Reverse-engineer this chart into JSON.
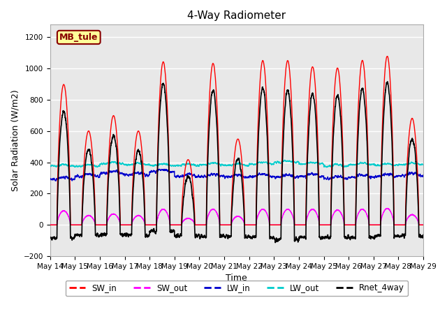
{
  "title": "4-Way Radiometer",
  "xlabel": "Time",
  "ylabel": "Solar Radiation (W/m2)",
  "ylim": [
    -200,
    1280
  ],
  "yticks": [
    -200,
    0,
    200,
    400,
    600,
    800,
    1000,
    1200
  ],
  "station_label": "MB_tule",
  "start_day": 14,
  "end_day": 29,
  "n_days": 15,
  "points_per_day": 288,
  "sw_in_peaks": [
    900,
    600,
    700,
    600,
    1040,
    420,
    1030,
    550,
    1050,
    1050,
    1010,
    1000,
    1050,
    1080,
    680
  ],
  "sw_out_peaks": [
    90,
    60,
    70,
    60,
    100,
    42,
    100,
    55,
    100,
    100,
    100,
    95,
    100,
    105,
    65
  ],
  "lw_in_base": [
    290,
    310,
    330,
    320,
    340,
    310,
    310,
    305,
    310,
    305,
    310,
    295,
    305,
    310,
    315
  ],
  "lw_out_base": [
    375,
    375,
    390,
    385,
    380,
    380,
    385,
    380,
    390,
    400,
    390,
    375,
    385,
    380,
    385
  ],
  "line_colors": {
    "SW_in": "#ff0000",
    "SW_out": "#ff00ff",
    "LW_in": "#0000cc",
    "LW_out": "#00cccc",
    "Rnet_4way": "#000000"
  },
  "line_widths": {
    "SW_in": 1.0,
    "SW_out": 1.0,
    "LW_in": 1.0,
    "LW_out": 1.0,
    "Rnet_4way": 1.2
  },
  "bg_color": "#e8e8e8",
  "fig_bg_color": "#ffffff",
  "grid_color": "#ffffff",
  "label_box_color": "#ffff99",
  "label_box_edge": "#880000"
}
